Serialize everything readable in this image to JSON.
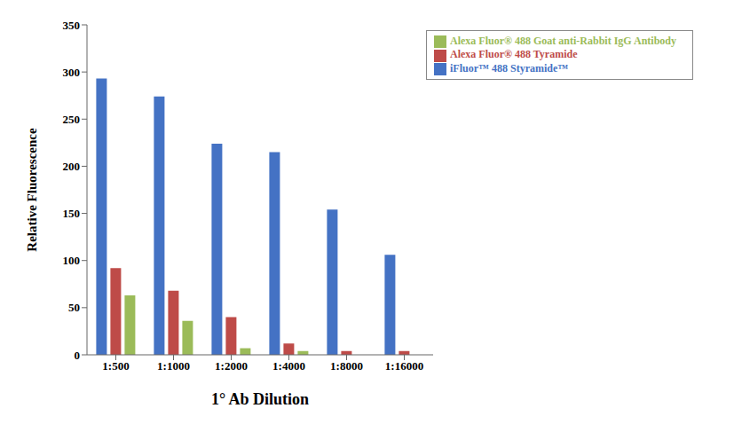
{
  "chart_data": {
    "type": "bar",
    "categories": [
      "1:500",
      "1:1000",
      "1:2000",
      "1:4000",
      "1:8000",
      "1:16000"
    ],
    "series": [
      {
        "name": "iFluor™ 488 Styramide™",
        "color": "#4472C4",
        "values": [
          293,
          274,
          224,
          215,
          154,
          106
        ]
      },
      {
        "name": "Alexa Fluor® 488 Tyramide",
        "color": "#BE4B48",
        "values": [
          92,
          68,
          40,
          12,
          4,
          4
        ]
      },
      {
        "name": "Alexa Fluor® 488 Goat anti-Rabbit IgG Antibody",
        "color": "#9BBB59",
        "values": [
          63,
          36,
          7,
          4,
          0,
          0
        ]
      }
    ],
    "xlabel": "1° Ab Dilution",
    "ylabel": "Relative Fluorescence",
    "ylim": [
      0,
      350
    ],
    "yticks": [
      0,
      50,
      100,
      150,
      200,
      250,
      300,
      350
    ],
    "grid": false,
    "legend": "upper right"
  }
}
